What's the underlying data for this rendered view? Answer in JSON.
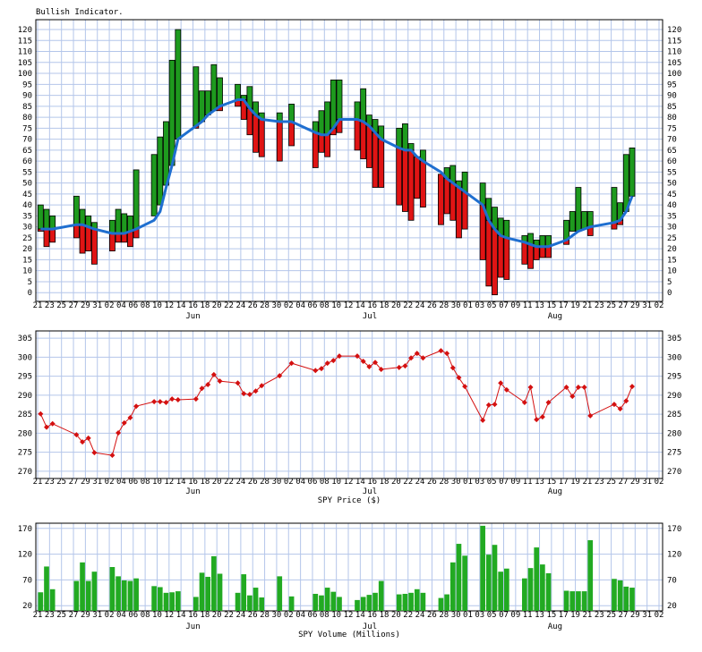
{
  "chart_data": [
    {
      "type": "range_bar",
      "title": "Bullish Indicator.",
      "x": [
        0,
        1,
        2,
        6,
        7,
        8,
        9,
        12,
        13,
        14,
        15,
        16,
        19,
        20,
        21,
        22,
        23,
        26,
        27,
        28,
        29,
        30,
        33,
        34,
        35,
        36,
        37,
        40,
        42,
        46,
        47,
        48,
        49,
        50,
        53,
        54,
        55,
        56,
        57,
        60,
        61,
        62,
        63,
        64,
        67,
        68,
        69,
        70,
        71,
        74,
        75,
        76,
        77,
        78,
        81,
        82,
        83,
        84,
        85,
        88,
        89,
        90,
        91,
        92,
        96,
        97,
        98,
        99
      ],
      "high": [
        40,
        38,
        35,
        44,
        38,
        35,
        32,
        33,
        38,
        36,
        35,
        56,
        63,
        71,
        78,
        106,
        120,
        103,
        92,
        92,
        104,
        98,
        95,
        90,
        94,
        87,
        82,
        82,
        86,
        78,
        83,
        87,
        97,
        97,
        87,
        93,
        81,
        79,
        76,
        75,
        77,
        68,
        62,
        65,
        54,
        57,
        58,
        51,
        55,
        50,
        43,
        39,
        34,
        33,
        26,
        27,
        24,
        26,
        26,
        33,
        37,
        48,
        37,
        37,
        48,
        41,
        63,
        66
      ],
      "low": [
        28,
        21,
        23,
        25,
        18,
        19,
        13,
        19,
        23,
        23,
        21,
        25,
        35,
        40,
        49,
        58,
        70,
        75,
        78,
        81,
        83,
        83,
        85,
        79,
        72,
        64,
        62,
        60,
        67,
        57,
        64,
        62,
        72,
        73,
        65,
        61,
        57,
        48,
        48,
        40,
        37,
        33,
        43,
        39,
        31,
        36,
        33,
        25,
        29,
        15,
        3,
        -1,
        7,
        6,
        13,
        11,
        15,
        16,
        16,
        22,
        28,
        28,
        29,
        26,
        29,
        31,
        37,
        44
      ],
      "ma": [
        29,
        29,
        29,
        31,
        31,
        30,
        29,
        27,
        27,
        27,
        28,
        29,
        33,
        37,
        48,
        58,
        70,
        76,
        78,
        81,
        83,
        85,
        88,
        88,
        84,
        81,
        79,
        78,
        78,
        73,
        72,
        72,
        75,
        79,
        79,
        78,
        76,
        73,
        70,
        66,
        65,
        65,
        62,
        60,
        55,
        52,
        50,
        48,
        46,
        40,
        33,
        29,
        26,
        25,
        23,
        22,
        21,
        21,
        21,
        24,
        26,
        28,
        29,
        30,
        32,
        33,
        37,
        44
      ],
      "up_color": "#1e9a1e",
      "down_color": "#e01414",
      "ma_color": "#1f6fd0",
      "xlim": [
        -0.3,
        104.6
      ],
      "ylim": [
        -4,
        124.5
      ],
      "yticks": [
        0,
        5,
        10,
        15,
        20,
        25,
        30,
        35,
        40,
        45,
        50,
        55,
        60,
        65,
        70,
        75,
        80,
        85,
        90,
        95,
        100,
        105,
        110,
        115,
        120
      ],
      "xticks": [
        {
          "value": 0,
          "label": "21"
        },
        {
          "value": 2,
          "label": "23"
        },
        {
          "value": 4,
          "label": "25"
        },
        {
          "value": 6,
          "label": "27"
        },
        {
          "value": 8,
          "label": "29"
        },
        {
          "value": 10,
          "label": "31"
        },
        {
          "value": 12,
          "label": "02"
        },
        {
          "value": 14,
          "label": "04"
        },
        {
          "value": 16,
          "label": "06"
        },
        {
          "value": 18,
          "label": "08"
        },
        {
          "value": 20,
          "label": "10"
        },
        {
          "value": 22,
          "label": "12"
        },
        {
          "value": 24,
          "label": "14"
        },
        {
          "value": 26,
          "label": "16"
        },
        {
          "value": 28,
          "label": "18"
        },
        {
          "value": 30,
          "label": "20"
        },
        {
          "value": 32,
          "label": "22"
        },
        {
          "value": 34,
          "label": "24"
        },
        {
          "value": 36,
          "label": "26"
        },
        {
          "value": 38,
          "label": "28"
        },
        {
          "value": 40,
          "label": "30"
        },
        {
          "value": 42,
          "label": "02"
        },
        {
          "value": 44,
          "label": "04"
        },
        {
          "value": 46,
          "label": "06"
        },
        {
          "value": 48,
          "label": "08"
        },
        {
          "value": 50,
          "label": "10"
        },
        {
          "value": 52,
          "label": "12"
        },
        {
          "value": 54,
          "label": "14"
        },
        {
          "value": 56,
          "label": "16"
        },
        {
          "value": 58,
          "label": "18"
        },
        {
          "value": 60,
          "label": "20"
        },
        {
          "value": 62,
          "label": "22"
        },
        {
          "value": 64,
          "label": "24"
        },
        {
          "value": 66,
          "label": "26"
        },
        {
          "value": 68,
          "label": "28"
        },
        {
          "value": 70,
          "label": "30"
        },
        {
          "value": 72,
          "label": "01"
        },
        {
          "value": 74,
          "label": "03"
        },
        {
          "value": 76,
          "label": "05"
        },
        {
          "value": 78,
          "label": "07"
        },
        {
          "value": 80,
          "label": "09"
        },
        {
          "value": 82,
          "label": "11"
        },
        {
          "value": 84,
          "label": "13"
        },
        {
          "value": 86,
          "label": "15"
        },
        {
          "value": 88,
          "label": "17"
        },
        {
          "value": 90,
          "label": "19"
        },
        {
          "value": 92,
          "label": "21"
        },
        {
          "value": 94,
          "label": "23"
        },
        {
          "value": 96,
          "label": "25"
        },
        {
          "value": 98,
          "label": "27"
        },
        {
          "value": 100,
          "label": "29"
        },
        {
          "value": 102,
          "label": "31"
        },
        {
          "value": 104,
          "label": "02"
        }
      ],
      "month_ticks": [
        {
          "value": 26,
          "label": "Jun"
        },
        {
          "value": 55.6,
          "label": "Jul"
        },
        {
          "value": 86.6,
          "label": "Aug"
        }
      ],
      "grid": true
    },
    {
      "type": "line",
      "x_label": "SPY Price ($)",
      "x": [
        0,
        1,
        2,
        6,
        7,
        8,
        9,
        12,
        13,
        14,
        15,
        16,
        19,
        20,
        21,
        22,
        23,
        26,
        27,
        28,
        29,
        30,
        33,
        34,
        35,
        36,
        37,
        40,
        42,
        46,
        47,
        48,
        49,
        50,
        53,
        54,
        55,
        56,
        57,
        60,
        61,
        62,
        63,
        64,
        67,
        68,
        69,
        70,
        71,
        74,
        75,
        76,
        77,
        78,
        81,
        82,
        83,
        84,
        85,
        88,
        89,
        90,
        91,
        92,
        96,
        97,
        98,
        99
      ],
      "values": [
        285.1,
        281.6,
        282.5,
        279.6,
        277.7,
        278.7,
        274.9,
        274.2,
        280.1,
        282.7,
        284.1,
        287.1,
        288.3,
        288.3,
        288.1,
        289.0,
        288.8,
        289.0,
        291.8,
        292.8,
        295.4,
        293.7,
        293.2,
        290.4,
        290.2,
        291.1,
        292.5,
        295.1,
        298.4,
        296.5,
        297.0,
        298.4,
        299.1,
        300.3,
        300.3,
        298.9,
        297.5,
        298.6,
        296.8,
        297.3,
        297.7,
        299.8,
        301.0,
        299.8,
        301.7,
        301.0,
        297.2,
        294.6,
        292.3,
        283.4,
        287.4,
        287.6,
        293.2,
        291.4,
        288.1,
        292.1,
        283.6,
        284.3,
        288.1,
        292.1,
        289.7,
        292.1,
        292.1,
        284.6,
        287.6,
        286.4,
        288.5,
        292.3
      ],
      "color": "#d41010",
      "xlim": [
        -0.3,
        104.6
      ],
      "ylim": [
        268.1,
        306.9
      ],
      "yticks": [
        270,
        275,
        280,
        285,
        290,
        295,
        300,
        305
      ],
      "xticks": [
        {
          "value": 0,
          "label": "21"
        },
        {
          "value": 2,
          "label": "23"
        },
        {
          "value": 4,
          "label": "25"
        },
        {
          "value": 6,
          "label": "27"
        },
        {
          "value": 8,
          "label": "29"
        },
        {
          "value": 10,
          "label": "31"
        },
        {
          "value": 12,
          "label": "02"
        },
        {
          "value": 14,
          "label": "04"
        },
        {
          "value": 16,
          "label": "06"
        },
        {
          "value": 18,
          "label": "08"
        },
        {
          "value": 20,
          "label": "10"
        },
        {
          "value": 22,
          "label": "12"
        },
        {
          "value": 24,
          "label": "14"
        },
        {
          "value": 26,
          "label": "16"
        },
        {
          "value": 28,
          "label": "18"
        },
        {
          "value": 30,
          "label": "20"
        },
        {
          "value": 32,
          "label": "22"
        },
        {
          "value": 34,
          "label": "24"
        },
        {
          "value": 36,
          "label": "26"
        },
        {
          "value": 38,
          "label": "28"
        },
        {
          "value": 40,
          "label": "30"
        },
        {
          "value": 42,
          "label": "02"
        },
        {
          "value": 44,
          "label": "04"
        },
        {
          "value": 46,
          "label": "06"
        },
        {
          "value": 48,
          "label": "08"
        },
        {
          "value": 50,
          "label": "10"
        },
        {
          "value": 52,
          "label": "12"
        },
        {
          "value": 54,
          "label": "14"
        },
        {
          "value": 56,
          "label": "16"
        },
        {
          "value": 58,
          "label": "18"
        },
        {
          "value": 60,
          "label": "20"
        },
        {
          "value": 62,
          "label": "22"
        },
        {
          "value": 64,
          "label": "24"
        },
        {
          "value": 66,
          "label": "26"
        },
        {
          "value": 68,
          "label": "28"
        },
        {
          "value": 70,
          "label": "30"
        },
        {
          "value": 72,
          "label": "01"
        },
        {
          "value": 74,
          "label": "03"
        },
        {
          "value": 76,
          "label": "05"
        },
        {
          "value": 78,
          "label": "07"
        },
        {
          "value": 80,
          "label": "09"
        },
        {
          "value": 82,
          "label": "11"
        },
        {
          "value": 84,
          "label": "13"
        },
        {
          "value": 86,
          "label": "15"
        },
        {
          "value": 88,
          "label": "17"
        },
        {
          "value": 90,
          "label": "19"
        },
        {
          "value": 92,
          "label": "21"
        },
        {
          "value": 94,
          "label": "23"
        },
        {
          "value": 96,
          "label": "25"
        },
        {
          "value": 98,
          "label": "27"
        },
        {
          "value": 100,
          "label": "29"
        },
        {
          "value": 102,
          "label": "31"
        },
        {
          "value": 104,
          "label": "02"
        }
      ],
      "month_ticks": [
        {
          "value": 26,
          "label": "Jun"
        },
        {
          "value": 55.6,
          "label": "Jul"
        },
        {
          "value": 86.6,
          "label": "Aug"
        }
      ],
      "grid": true
    },
    {
      "type": "bar",
      "x_label": "SPY Volume (Millions)",
      "x": [
        0,
        1,
        2,
        6,
        7,
        8,
        9,
        12,
        13,
        14,
        15,
        16,
        19,
        20,
        21,
        22,
        23,
        26,
        27,
        28,
        29,
        30,
        33,
        34,
        35,
        36,
        37,
        40,
        42,
        46,
        47,
        48,
        49,
        50,
        53,
        54,
        55,
        56,
        57,
        60,
        61,
        62,
        63,
        64,
        67,
        68,
        69,
        70,
        71,
        74,
        75,
        76,
        77,
        78,
        81,
        82,
        83,
        84,
        85,
        88,
        89,
        90,
        91,
        92,
        96,
        97,
        98,
        99
      ],
      "values": [
        46,
        96,
        52,
        68,
        104,
        68,
        86,
        95,
        77,
        69,
        68,
        73,
        58,
        56,
        45,
        46,
        48,
        37,
        84,
        76,
        116,
        82,
        45,
        81,
        40,
        55,
        36,
        77,
        38,
        43,
        40,
        55,
        47,
        37,
        31,
        37,
        41,
        45,
        68,
        42,
        43,
        45,
        52,
        45,
        35,
        42,
        104,
        140,
        117,
        175,
        119,
        138,
        86,
        92,
        73,
        93,
        133,
        100,
        83,
        49,
        48,
        48,
        48,
        147,
        72,
        69,
        57,
        55
      ],
      "color": "#22aa22",
      "xlim": [
        -0.3,
        104.6
      ],
      "ylim": [
        10,
        180
      ],
      "yticks": [
        20,
        70,
        120,
        170
      ],
      "xticks": [
        {
          "value": 0,
          "label": "21"
        },
        {
          "value": 2,
          "label": "23"
        },
        {
          "value": 4,
          "label": "25"
        },
        {
          "value": 6,
          "label": "27"
        },
        {
          "value": 8,
          "label": "29"
        },
        {
          "value": 10,
          "label": "31"
        },
        {
          "value": 12,
          "label": "02"
        },
        {
          "value": 14,
          "label": "04"
        },
        {
          "value": 16,
          "label": "06"
        },
        {
          "value": 18,
          "label": "08"
        },
        {
          "value": 20,
          "label": "10"
        },
        {
          "value": 22,
          "label": "12"
        },
        {
          "value": 24,
          "label": "14"
        },
        {
          "value": 26,
          "label": "16"
        },
        {
          "value": 28,
          "label": "18"
        },
        {
          "value": 30,
          "label": "20"
        },
        {
          "value": 32,
          "label": "22"
        },
        {
          "value": 34,
          "label": "24"
        },
        {
          "value": 36,
          "label": "26"
        },
        {
          "value": 38,
          "label": "28"
        },
        {
          "value": 40,
          "label": "30"
        },
        {
          "value": 42,
          "label": "02"
        },
        {
          "value": 44,
          "label": "04"
        },
        {
          "value": 46,
          "label": "06"
        },
        {
          "value": 48,
          "label": "08"
        },
        {
          "value": 50,
          "label": "10"
        },
        {
          "value": 52,
          "label": "12"
        },
        {
          "value": 54,
          "label": "14"
        },
        {
          "value": 56,
          "label": "16"
        },
        {
          "value": 58,
          "label": "18"
        },
        {
          "value": 60,
          "label": "20"
        },
        {
          "value": 62,
          "label": "22"
        },
        {
          "value": 64,
          "label": "24"
        },
        {
          "value": 66,
          "label": "26"
        },
        {
          "value": 68,
          "label": "28"
        },
        {
          "value": 70,
          "label": "30"
        },
        {
          "value": 72,
          "label": "01"
        },
        {
          "value": 74,
          "label": "03"
        },
        {
          "value": 76,
          "label": "05"
        },
        {
          "value": 78,
          "label": "07"
        },
        {
          "value": 80,
          "label": "09"
        },
        {
          "value": 82,
          "label": "11"
        },
        {
          "value": 84,
          "label": "13"
        },
        {
          "value": 86,
          "label": "15"
        },
        {
          "value": 88,
          "label": "17"
        },
        {
          "value": 90,
          "label": "19"
        },
        {
          "value": 92,
          "label": "21"
        },
        {
          "value": 94,
          "label": "23"
        },
        {
          "value": 96,
          "label": "25"
        },
        {
          "value": 98,
          "label": "27"
        },
        {
          "value": 100,
          "label": "29"
        },
        {
          "value": 102,
          "label": "31"
        },
        {
          "value": 104,
          "label": "02"
        }
      ],
      "month_ticks": [
        {
          "value": 26,
          "label": "Jun"
        },
        {
          "value": 55.6,
          "label": "Jul"
        },
        {
          "value": 86.6,
          "label": "Aug"
        }
      ],
      "grid": true
    }
  ]
}
